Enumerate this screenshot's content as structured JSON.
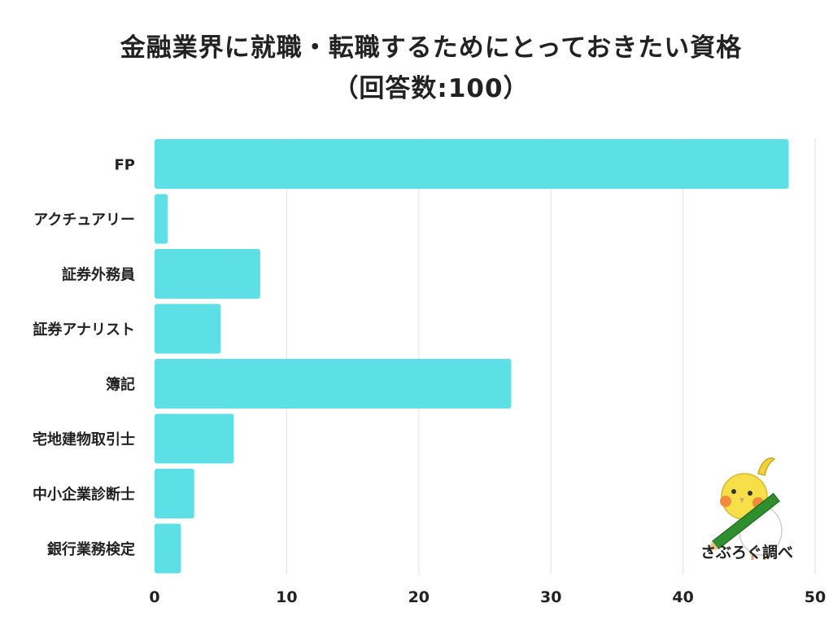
{
  "chart_data": {
    "type": "bar",
    "orientation": "horizontal",
    "title_lines": [
      "金融業界に就職・転職するためにとっておきたい資格",
      "（回答数:100）"
    ],
    "categories": [
      "FP",
      "アクチュアリー",
      "証券外務員",
      "証券アナリスト",
      "簿記",
      "宅地建物取引士",
      "中小企業診断士",
      "銀行業務検定"
    ],
    "values": [
      48,
      1,
      8,
      5,
      27,
      6,
      3,
      2
    ],
    "xlim": [
      0,
      50
    ],
    "xticks": [
      0,
      10,
      20,
      30,
      40,
      50
    ],
    "grid": true,
    "bar_color": "#5ce0e6",
    "grid_color": "#e4e4e4"
  },
  "credit": {
    "text": "さぶろぐ調べ",
    "mascot_icon": "cockatiel-with-pencil-icon"
  }
}
